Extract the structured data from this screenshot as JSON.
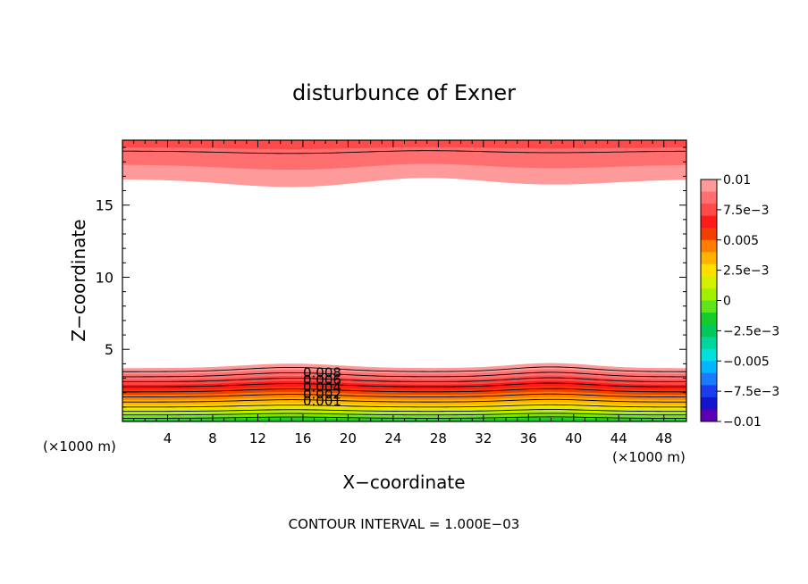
{
  "chart_data": {
    "type": "heatmap",
    "title": "disturbunce of Exner",
    "xlabel": "X−coordinate",
    "ylabel": "Z−coordinate",
    "x_unit_left": "(×1000 m)",
    "x_unit_right": "(×1000 m)",
    "xlim": [
      0,
      50
    ],
    "ylim": [
      0,
      19.5
    ],
    "x_ticks": [
      4,
      8,
      12,
      16,
      20,
      24,
      28,
      32,
      36,
      40,
      44,
      48
    ],
    "y_ticks": [
      5,
      10,
      15
    ],
    "footer": "CONTOUR INTERVAL = 1.000E−03",
    "colorbar": {
      "ticks": [
        "0.01",
        "7.5e−3",
        "0.005",
        "2.5e−3",
        "0",
        "−2.5e−3",
        "−0.005",
        "−7.5e−3",
        "−0.01"
      ],
      "colors": [
        "#ff9a9a",
        "#ff6f6f",
        "#ff4a4a",
        "#ff1a1a",
        "#f23e00",
        "#ff7d00",
        "#ffb300",
        "#ffdf00",
        "#d2f000",
        "#a0f000",
        "#5ee61a",
        "#14cc2a",
        "#00c85a",
        "#00d69e",
        "#00e0dc",
        "#00b6ff",
        "#1a7bff",
        "#1c3cf0",
        "#1414cc",
        "#5c00b4"
      ]
    },
    "contour_labels": [
      "0.008",
      "0.006",
      "0.004",
      "0.002",
      "0.001"
    ],
    "contour_interval": 0.001
  }
}
